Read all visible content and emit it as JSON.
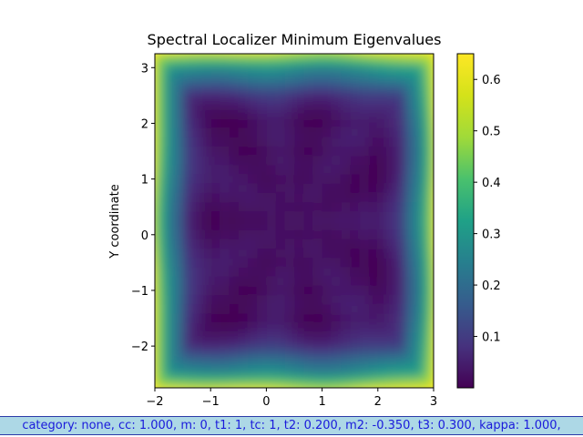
{
  "chart_data": {
    "type": "heatmap",
    "title": "Spectral Localizer Minimum Eigenvalues",
    "xlabel": "",
    "ylabel": "Y coordinate",
    "xlim": [
      -2,
      3
    ],
    "ylim": [
      -2.75,
      3.25
    ],
    "x_ticks": [
      "−2",
      "−1",
      "0",
      "1",
      "2",
      "3"
    ],
    "x_tick_values": [
      -2,
      -1,
      0,
      1,
      2,
      3
    ],
    "y_ticks": [
      "−2",
      "−1",
      "0",
      "1",
      "2",
      "3"
    ],
    "y_tick_values": [
      -2,
      -1,
      0,
      1,
      2,
      3
    ],
    "colorbar": {
      "range": [
        0.0,
        0.65
      ],
      "ticks": [
        "0.1",
        "0.2",
        "0.3",
        "0.4",
        "0.5",
        "0.6"
      ],
      "tick_values": [
        0.1,
        0.2,
        0.3,
        0.4,
        0.5,
        0.6
      ],
      "colormap": "viridis"
    },
    "grid": false,
    "description_of_field": "Low values (~0.02) inside a ring pattern centered near (0.5, 0.25); high values (~0.65) at the four corners of the domain; moderate (~0.4) along edges."
  },
  "status_bar": {
    "text": "category: none, cc: 1.000, m: 0, t1: 1, tc: 1, t2: 0.200, m2: -0.350, t3: 0.300, kappa: 1.000,"
  },
  "colors": {
    "status_background": "#add8e6",
    "status_text": "#1a1adb",
    "status_border": "#2a3aa8"
  }
}
